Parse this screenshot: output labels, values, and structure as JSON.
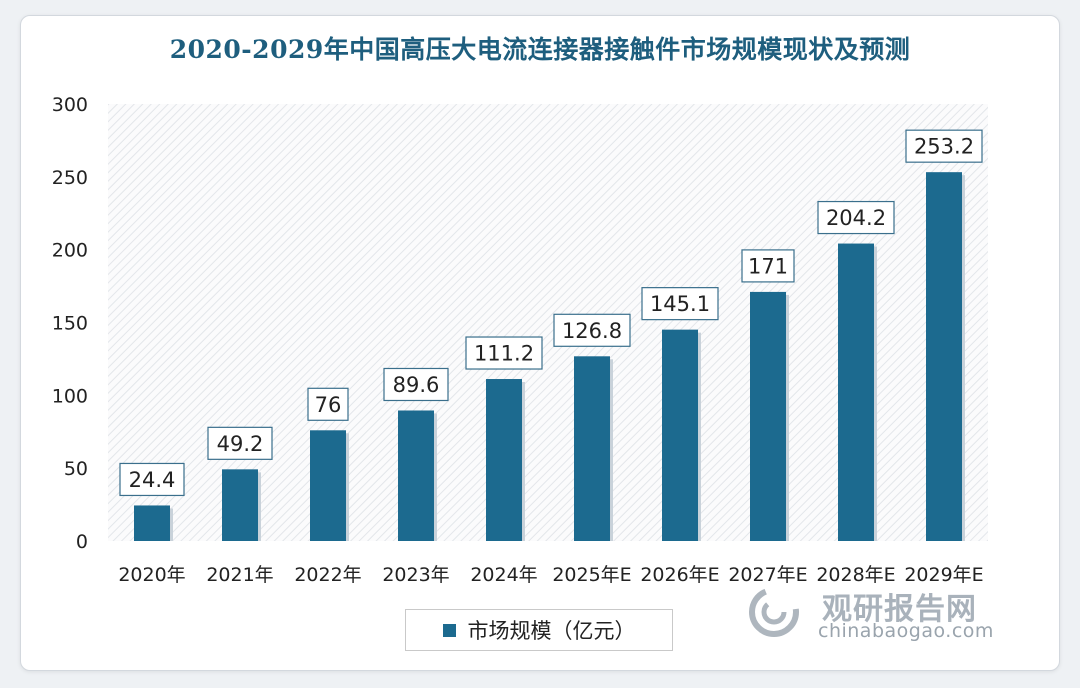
{
  "chart_data": {
    "type": "bar",
    "title": "2020-2029年中国高压大电流连接器接触件市场规模现状及预测",
    "categories": [
      "2020年",
      "2021年",
      "2022年",
      "2023年",
      "2024年",
      "2025年E",
      "2026年E",
      "2027年E",
      "2028年E",
      "2029年E"
    ],
    "series": [
      {
        "name": "市场规模（亿元）",
        "values": [
          24.4,
          49.2,
          76,
          89.6,
          111.2,
          126.8,
          145.1,
          171,
          204.2,
          253.2
        ],
        "labels": [
          "24.4",
          "49.2",
          "76",
          "89.6",
          "111.2",
          "126.8",
          "145.1",
          "171",
          "204.2",
          "253.2"
        ]
      }
    ],
    "ylim": [
      0,
      300
    ],
    "yticks": [
      0,
      50,
      100,
      150,
      200,
      250,
      300
    ],
    "xlabel": "",
    "ylabel": "",
    "legend": "bottom",
    "grid": false,
    "colors": {
      "bar": "#1c6a8f",
      "plot_bg_hatch": "#e3e6ea"
    }
  },
  "watermark": {
    "brand_cn": "观研报告网",
    "brand_en": "chinabaogao.com"
  }
}
